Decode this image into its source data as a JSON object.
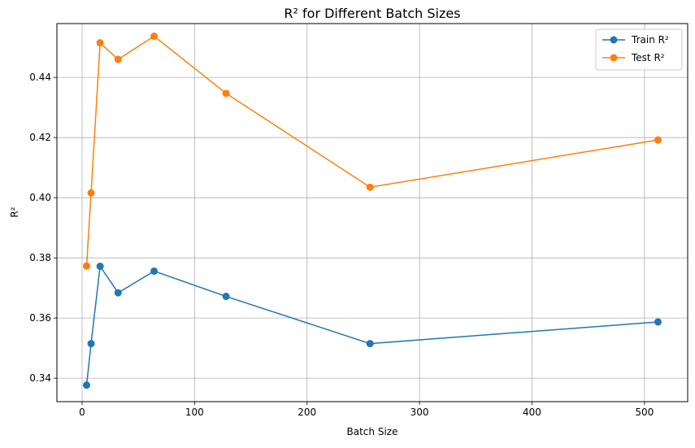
{
  "chart_data": {
    "type": "line",
    "title": "R² for Different Batch Sizes",
    "xlabel": "Batch Size",
    "ylabel": "R²",
    "x": [
      4,
      8,
      16,
      32,
      64,
      128,
      256,
      512
    ],
    "xlim": [
      -22.4,
      538.4
    ],
    "ylim": [
      0.3322,
      0.4579
    ],
    "xticks": [
      0,
      100,
      200,
      300,
      400,
      500
    ],
    "yticks": [
      0.34,
      0.36,
      0.38,
      0.4,
      0.42,
      0.44
    ],
    "ytick_labels": [
      "0.34",
      "0.36",
      "0.38",
      "0.40",
      "0.42",
      "0.44"
    ],
    "grid": true,
    "legend_position": "top-right",
    "series": [
      {
        "name": "Train R²",
        "color": "#1f77b4",
        "marker": "circle",
        "values": [
          0.3377,
          0.3515,
          0.3772,
          0.3684,
          0.3756,
          0.3672,
          0.3515,
          0.3587
        ]
      },
      {
        "name": "Test R²",
        "color": "#ff7f0e",
        "marker": "circle",
        "values": [
          0.3773,
          0.4016,
          0.4515,
          0.446,
          0.4537,
          0.4347,
          0.4035,
          0.4192
        ]
      }
    ]
  }
}
